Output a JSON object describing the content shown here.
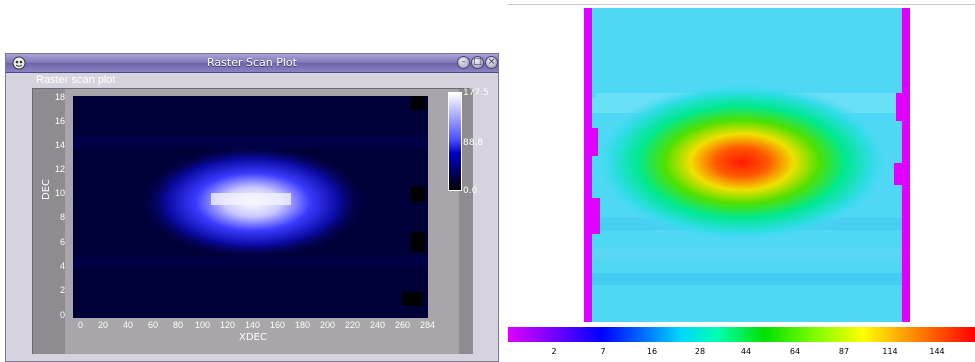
{
  "window": {
    "title": "Raster Scan Plot",
    "subtitle": "Raster scan plot",
    "buttons": {
      "minimize": "–",
      "maximize": "□",
      "close": "×"
    }
  },
  "left_plot": {
    "xlabel": "XDEC",
    "ylabel": "DEC",
    "x_ticks": [
      "0",
      "20",
      "40",
      "60",
      "80",
      "100",
      "120",
      "140",
      "160",
      "180",
      "200",
      "220",
      "240",
      "260",
      "284"
    ],
    "y_ticks": [
      "0",
      "2",
      "4",
      "6",
      "8",
      "10",
      "12",
      "14",
      "16",
      "18"
    ],
    "colorbar_labels": [
      "177.5",
      "88.8",
      "0.0"
    ]
  },
  "right_plot": {
    "colorbar_labels": [
      "2",
      "7",
      "16",
      "28",
      "44",
      "64",
      "87",
      "114",
      "144"
    ]
  },
  "chart_data": [
    {
      "type": "heatmap",
      "title": "Raster scan plot",
      "xlabel": "XDEC",
      "ylabel": "DEC",
      "xlim": [
        0,
        284
      ],
      "ylim": [
        0,
        18
      ],
      "zlim": [
        0.0,
        177.5
      ],
      "peak": {
        "x": 140,
        "y": 9.5,
        "value": 177.5
      },
      "colormap": [
        "#000000",
        "#0000c8",
        "#4f4fff",
        "#ffffff"
      ]
    },
    {
      "type": "heatmap",
      "colorbar_ticks": [
        2,
        7,
        16,
        28,
        44,
        64,
        87,
        114,
        144
      ],
      "colormap": [
        "#e000ff",
        "#0000ff",
        "#00d8ff",
        "#00e000",
        "#ffff00",
        "#ff8000",
        "#ff0000"
      ]
    }
  ]
}
